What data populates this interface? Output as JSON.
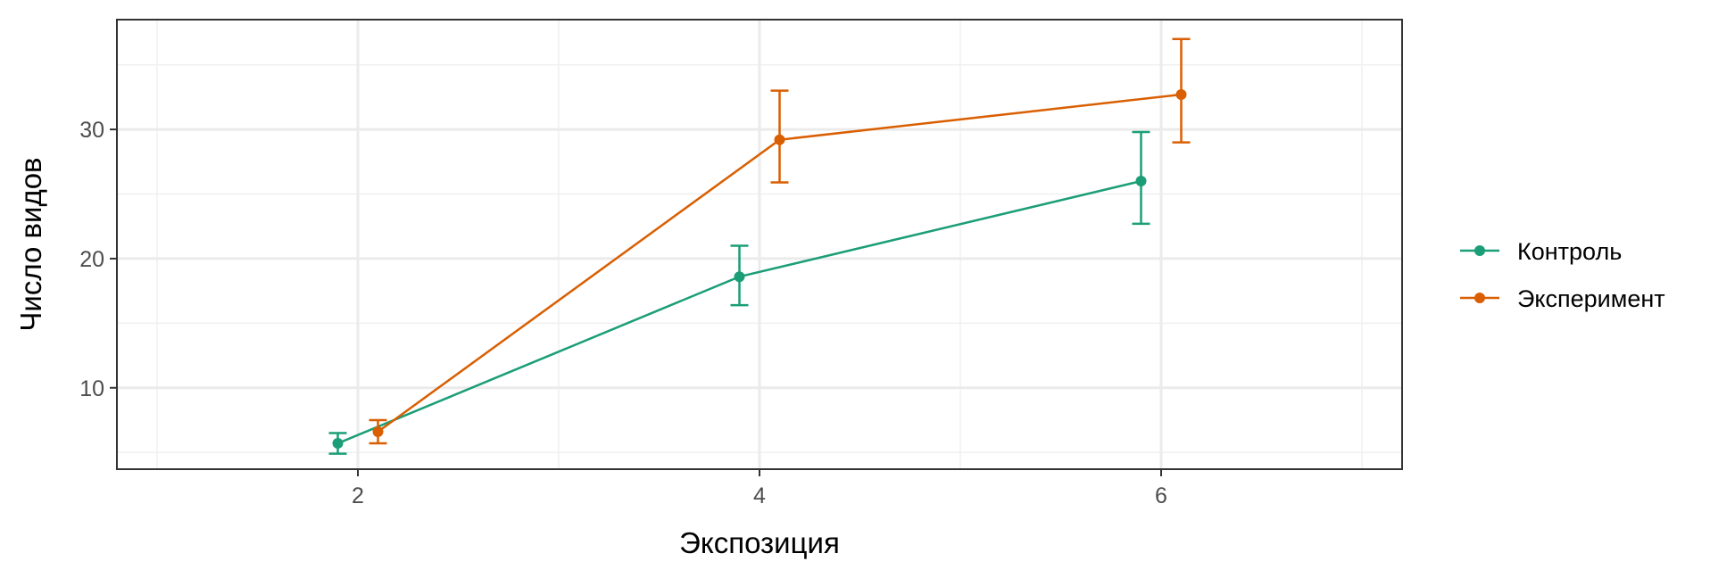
{
  "chart_data": {
    "type": "line",
    "xlabel": "Экспозиция",
    "ylabel": "Число видов",
    "x_ticks": [
      2,
      4,
      6
    ],
    "y_ticks": [
      10,
      20,
      30
    ],
    "xlim": [
      0.8,
      7.2
    ],
    "ylim": [
      3.7,
      38.5
    ],
    "grid": true,
    "legend_position": "right",
    "series": [
      {
        "name": "Контроль",
        "color": "#1b9e77",
        "x": [
          2,
          4,
          6
        ],
        "y": [
          5.7,
          18.6,
          26.0
        ],
        "err_low": [
          4.9,
          16.4,
          22.7
        ],
        "err_high": [
          6.5,
          21.0,
          29.8
        ]
      },
      {
        "name": "Эксперимент",
        "color": "#d95f02",
        "x": [
          2,
          4,
          6
        ],
        "y": [
          6.6,
          29.2,
          32.7
        ],
        "err_low": [
          5.7,
          25.9,
          29.0
        ],
        "err_high": [
          7.5,
          33.0,
          37.0
        ]
      }
    ]
  }
}
